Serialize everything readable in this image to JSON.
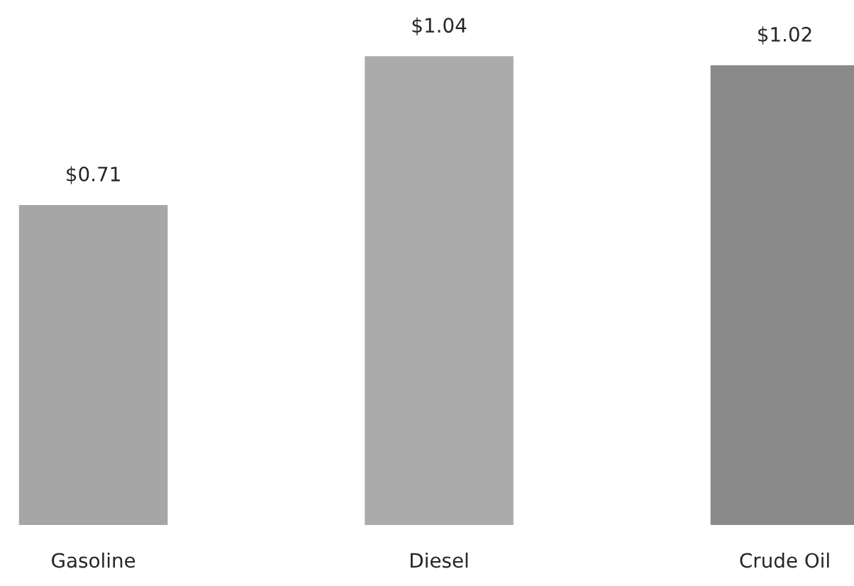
{
  "chart_data": {
    "type": "bar",
    "categories": [
      "Gasoline",
      "Diesel",
      "Crude Oil"
    ],
    "values": [
      0.71,
      1.04,
      1.02
    ],
    "value_labels": [
      "$0.71",
      "$1.04",
      "$1.02"
    ],
    "colors": [
      "#a6a6a6",
      "#ababab",
      "#8a8a8a"
    ],
    "grid": false,
    "legend": false
  }
}
